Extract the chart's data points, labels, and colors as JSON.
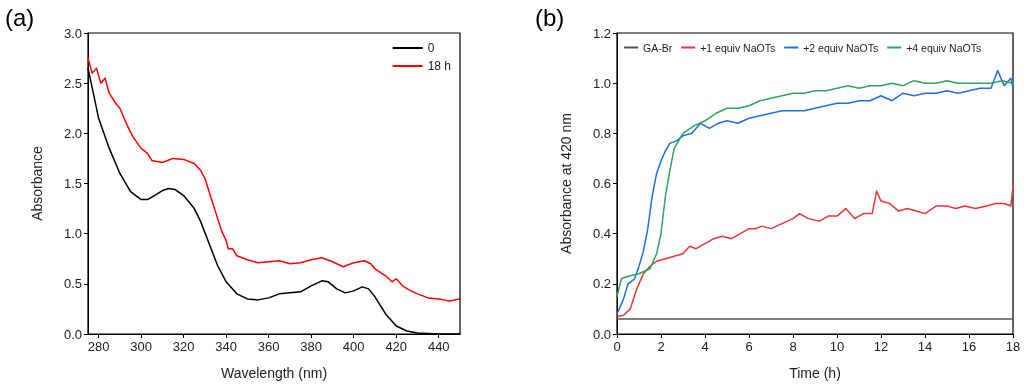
{
  "chart_data": [
    {
      "type": "line",
      "title": "(a)",
      "xlabel": "Wavelength (nm)",
      "ylabel": "Absorbance",
      "xlim": [
        275,
        450
      ],
      "xticks": [
        280,
        300,
        320,
        340,
        360,
        380,
        400,
        420,
        440
      ],
      "ylim": [
        0,
        3
      ],
      "yticks": [
        {
          "value": 0,
          "label": "0.0"
        },
        0.5,
        {
          "value": 1,
          "label": "1.0"
        },
        1.5,
        {
          "value": 2,
          "label": "2.0"
        },
        2.5,
        {
          "value": 3,
          "label": "3.0"
        }
      ],
      "grid": false,
      "legend": "top right",
      "marker": "none",
      "line_style": "solid",
      "series": [
        {
          "name": "0",
          "color": "#000000",
          "x": [
            275,
            278,
            280,
            285,
            290,
            295,
            300,
            303,
            307,
            310,
            313,
            316,
            320,
            325,
            328,
            332,
            336,
            340,
            345,
            350,
            355,
            360,
            365,
            370,
            375,
            380,
            385,
            388,
            392,
            396,
            400,
            404,
            407,
            410,
            415,
            420,
            425,
            430,
            440,
            450
          ],
          "values": [
            2.65,
            2.35,
            2.15,
            1.85,
            1.6,
            1.42,
            1.34,
            1.34,
            1.39,
            1.43,
            1.45,
            1.44,
            1.38,
            1.25,
            1.12,
            0.9,
            0.68,
            0.52,
            0.4,
            0.35,
            0.34,
            0.36,
            0.4,
            0.41,
            0.42,
            0.48,
            0.53,
            0.52,
            0.45,
            0.41,
            0.43,
            0.47,
            0.45,
            0.37,
            0.2,
            0.08,
            0.03,
            0.01,
            0,
            0
          ]
        },
        {
          "name": "18 h",
          "color": "#ff0000",
          "x": [
            275,
            277,
            279,
            281,
            283,
            285,
            288,
            290,
            293,
            296,
            300,
            303,
            305,
            310,
            315,
            320,
            325,
            328,
            330,
            333,
            336,
            338,
            340,
            341,
            343,
            345,
            350,
            355,
            360,
            365,
            370,
            375,
            380,
            385,
            390,
            395,
            400,
            405,
            408,
            410,
            415,
            418,
            420,
            423,
            426,
            430,
            435,
            440,
            445,
            450
          ],
          "values": [
            2.75,
            2.6,
            2.65,
            2.5,
            2.55,
            2.4,
            2.3,
            2.25,
            2.1,
            1.97,
            1.85,
            1.8,
            1.73,
            1.71,
            1.75,
            1.74,
            1.7,
            1.63,
            1.55,
            1.35,
            1.15,
            1.02,
            0.93,
            0.85,
            0.85,
            0.78,
            0.74,
            0.71,
            0.72,
            0.73,
            0.7,
            0.71,
            0.74,
            0.76,
            0.72,
            0.67,
            0.71,
            0.73,
            0.7,
            0.65,
            0.58,
            0.52,
            0.55,
            0.48,
            0.44,
            0.4,
            0.36,
            0.35,
            0.33,
            0.35
          ]
        }
      ]
    },
    {
      "type": "line",
      "title": "(b)",
      "xlabel": "Time (h)",
      "ylabel": "Absorbance at 420 nm",
      "xlim": [
        0,
        18
      ],
      "xticks": [
        0,
        2,
        4,
        6,
        8,
        10,
        12,
        14,
        16,
        18
      ],
      "ylim": [
        0,
        1.2
      ],
      "yticks": [
        {
          "value": 0,
          "label": "0.0"
        },
        0.2,
        0.4,
        0.6,
        0.8,
        {
          "value": 1,
          "label": "1.0"
        },
        1.2
      ],
      "grid": false,
      "legend": "top",
      "marker": "none",
      "line_style": "solid",
      "series": [
        {
          "name": "GA-Br",
          "color": "#555555",
          "x": [
            0,
            18
          ],
          "values": [
            0.06,
            0.06
          ]
        },
        {
          "name": "+1 equiv NaOTs",
          "color": "#e8363a",
          "x": [
            0,
            0.3,
            0.6,
            0.9,
            1.2,
            1.5,
            1.8,
            2.2,
            2.6,
            3,
            3.3,
            3.6,
            4,
            4.4,
            4.8,
            5.2,
            5.6,
            6,
            6.3,
            6.6,
            7,
            7.5,
            8,
            8.3,
            8.7,
            9.2,
            9.6,
            10,
            10.4,
            10.8,
            11.2,
            11.6,
            11.8,
            12,
            12.4,
            12.8,
            13.2,
            13.6,
            14,
            14.5,
            15,
            15.4,
            15.8,
            16.3,
            16.8,
            17.2,
            17.6,
            17.9,
            18
          ],
          "values": [
            0.07,
            0.075,
            0.1,
            0.18,
            0.24,
            0.27,
            0.29,
            0.3,
            0.31,
            0.32,
            0.35,
            0.34,
            0.36,
            0.38,
            0.39,
            0.38,
            0.4,
            0.42,
            0.42,
            0.43,
            0.42,
            0.44,
            0.46,
            0.48,
            0.46,
            0.45,
            0.47,
            0.47,
            0.5,
            0.46,
            0.48,
            0.48,
            0.57,
            0.53,
            0.52,
            0.49,
            0.5,
            0.49,
            0.48,
            0.51,
            0.51,
            0.5,
            0.51,
            0.5,
            0.51,
            0.52,
            0.52,
            0.51,
            0.59
          ]
        },
        {
          "name": "+2 equiv NaOTs",
          "color": "#1f6fe0",
          "x": [
            0,
            0.3,
            0.5,
            0.8,
            1,
            1.2,
            1.4,
            1.6,
            1.8,
            2,
            2.2,
            2.4,
            2.7,
            3,
            3.4,
            3.8,
            4.2,
            4.6,
            5,
            5.5,
            6,
            6.5,
            7,
            7.5,
            8,
            8.5,
            9,
            9.5,
            10,
            10.5,
            11,
            11.5,
            12,
            12.5,
            13,
            13.5,
            14,
            14.5,
            15,
            15.5,
            16,
            16.5,
            17,
            17.3,
            17.6,
            17.9,
            18
          ],
          "values": [
            0.08,
            0.14,
            0.2,
            0.22,
            0.27,
            0.33,
            0.42,
            0.55,
            0.64,
            0.69,
            0.73,
            0.76,
            0.77,
            0.79,
            0.8,
            0.84,
            0.82,
            0.84,
            0.85,
            0.84,
            0.86,
            0.87,
            0.88,
            0.89,
            0.89,
            0.89,
            0.9,
            0.91,
            0.92,
            0.92,
            0.93,
            0.93,
            0.95,
            0.93,
            0.96,
            0.95,
            0.96,
            0.96,
            0.97,
            0.96,
            0.97,
            0.98,
            0.98,
            1.05,
            0.99,
            1.02,
            0.98
          ]
        },
        {
          "name": "+4 equiv NaOTs",
          "color": "#2ea55a",
          "x": [
            0,
            0.2,
            0.5,
            1,
            1.5,
            1.8,
            2,
            2.2,
            2.4,
            2.6,
            2.8,
            3,
            3.5,
            4,
            4.5,
            5,
            5.5,
            6,
            6.5,
            7,
            7.5,
            8,
            8.5,
            9,
            9.5,
            10,
            10.5,
            11,
            11.5,
            12,
            12.5,
            13,
            13.5,
            14,
            14.5,
            15,
            15.5,
            16,
            16.5,
            17,
            17.5,
            18
          ],
          "values": [
            0.15,
            0.22,
            0.23,
            0.24,
            0.26,
            0.32,
            0.4,
            0.55,
            0.65,
            0.74,
            0.77,
            0.8,
            0.83,
            0.85,
            0.88,
            0.9,
            0.9,
            0.91,
            0.93,
            0.94,
            0.95,
            0.96,
            0.96,
            0.97,
            0.97,
            0.98,
            0.99,
            0.98,
            0.99,
            0.99,
            1.0,
            0.99,
            1.01,
            1.0,
            1.0,
            1.01,
            1.0,
            1.0,
            1.0,
            1.0,
            1.01,
            1.0
          ]
        }
      ]
    }
  ]
}
